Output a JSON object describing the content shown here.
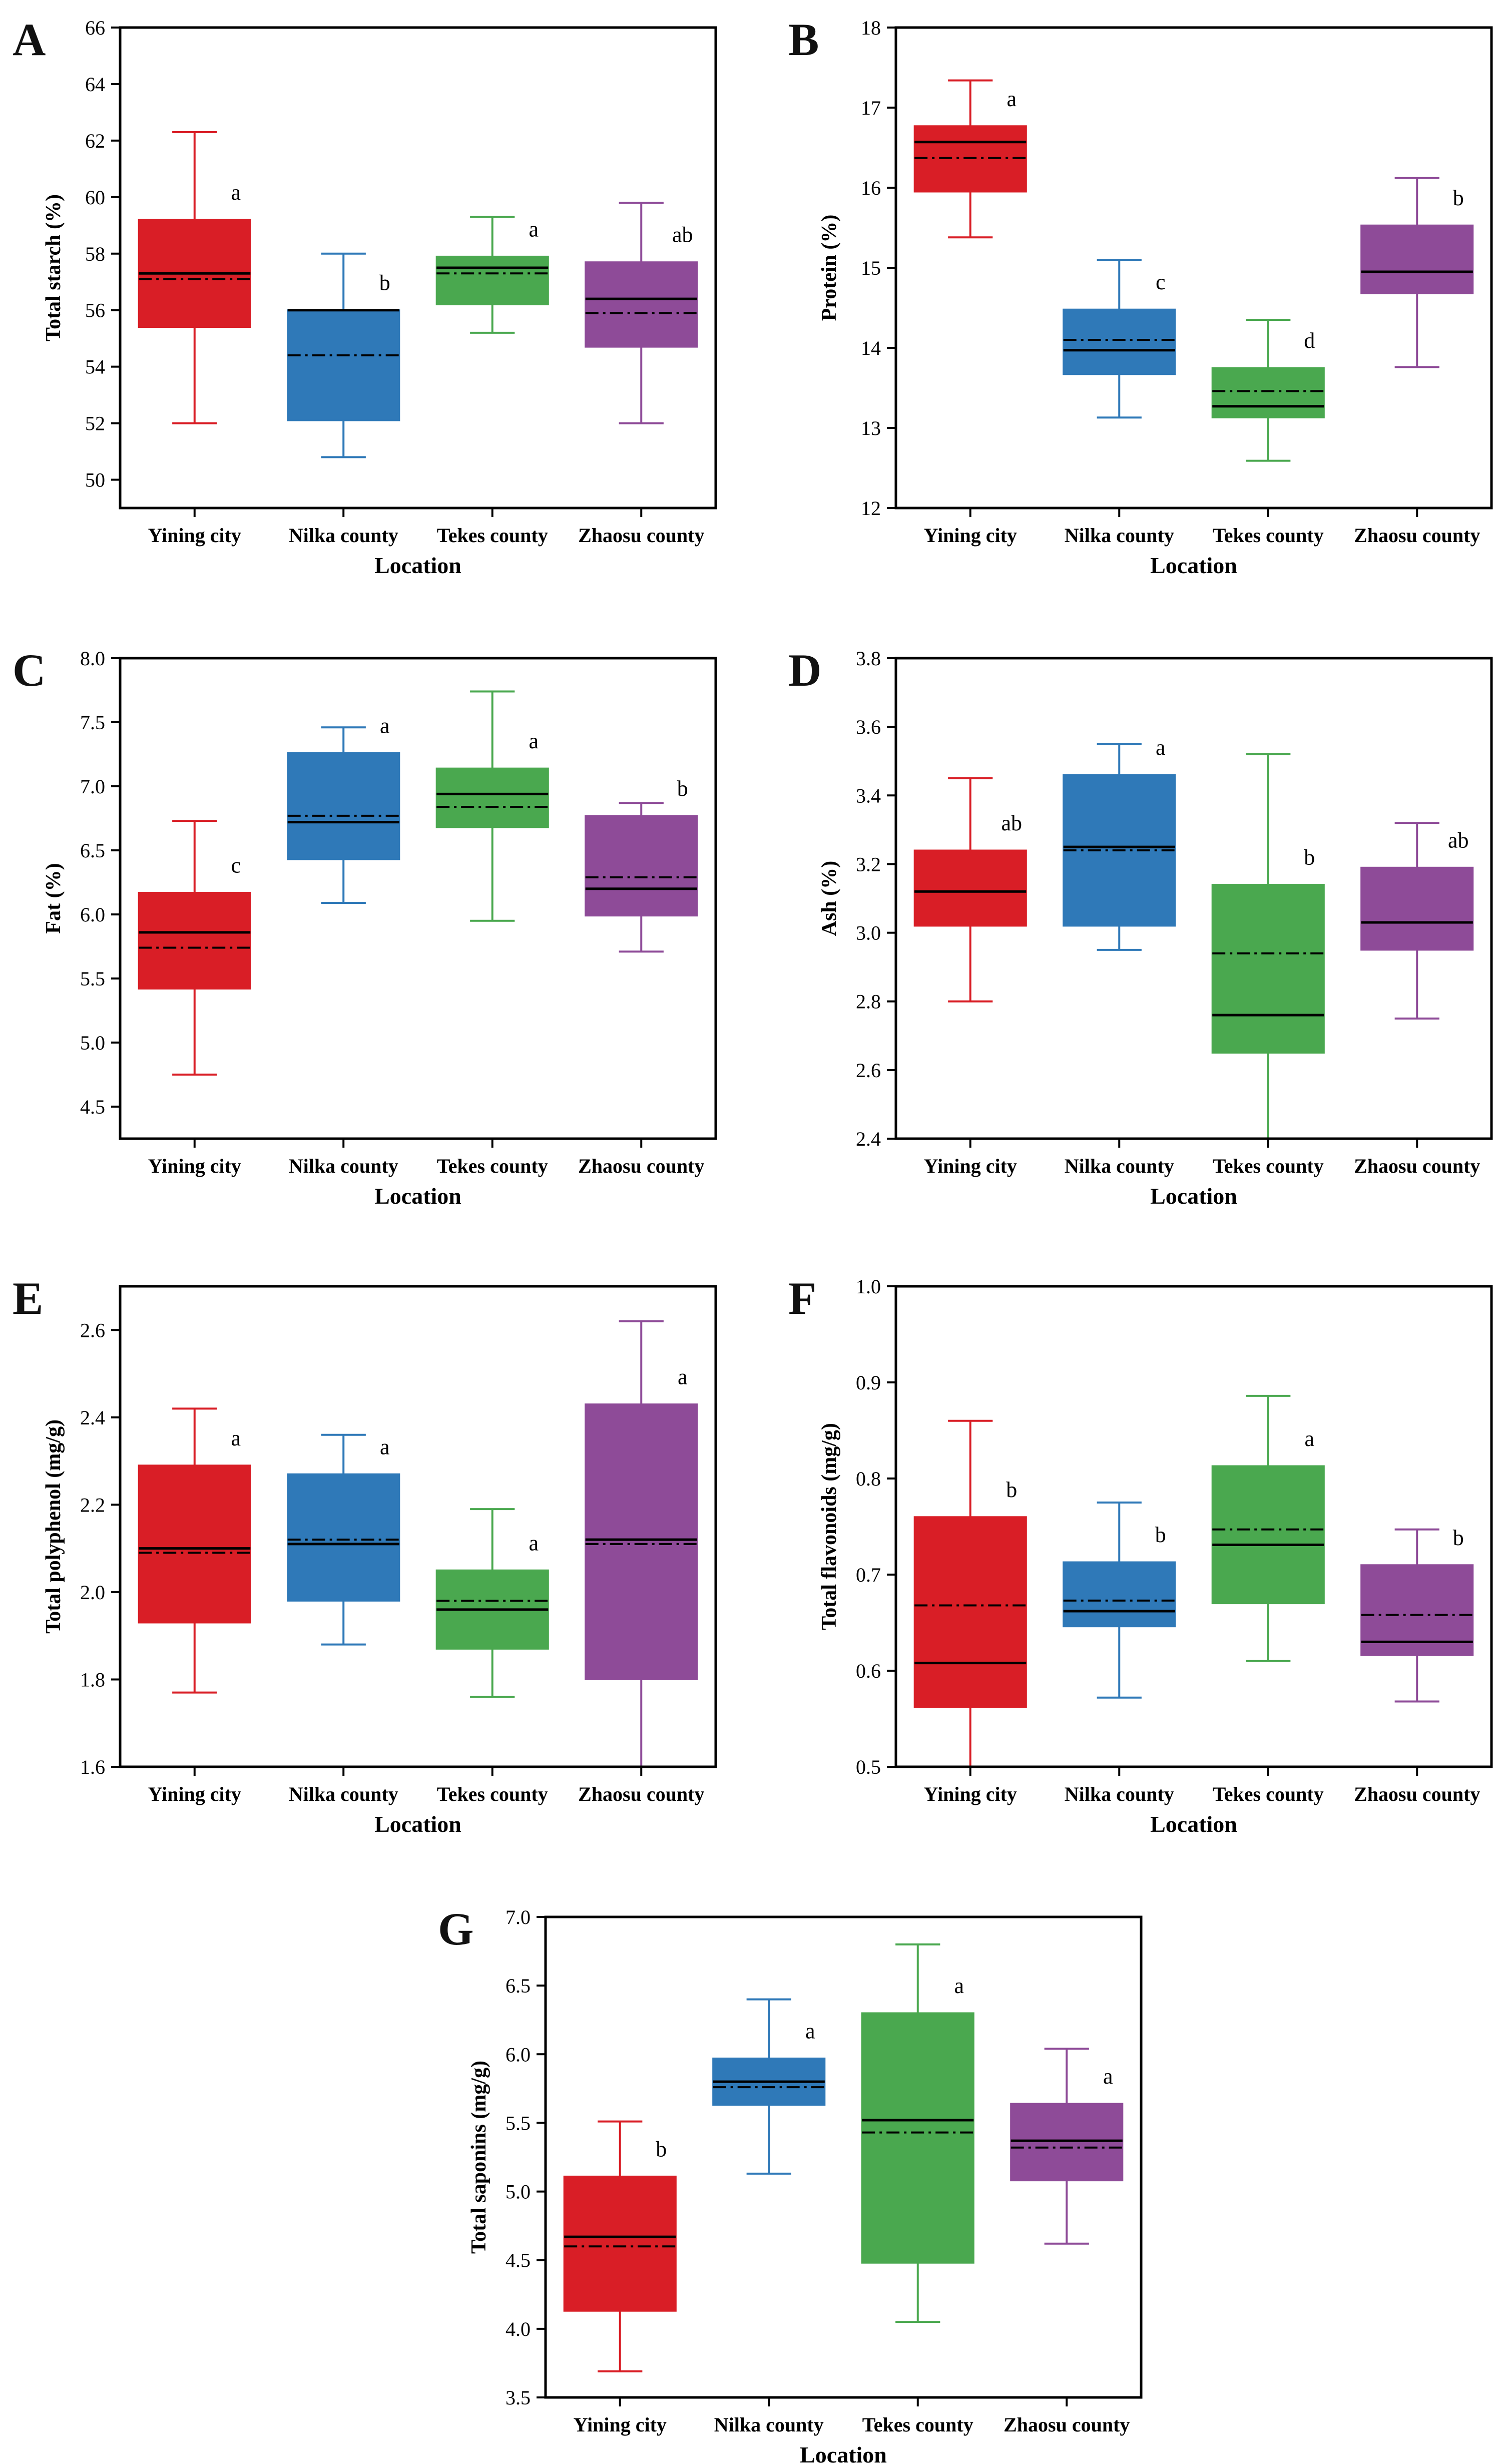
{
  "colors": {
    "Yining city": "#d91e26",
    "Nilka county": "#2f79b8",
    "Tekes county": "#4aa84f",
    "Zhaosu county": "#8e4b98"
  },
  "chart_data": [
    {
      "panel": "A",
      "type": "box",
      "xlabel": "Location",
      "ylabel": "Total starch (%)",
      "ylim": [
        49,
        66
      ],
      "yticks": [
        50,
        52,
        54,
        56,
        58,
        60,
        62,
        64,
        66
      ],
      "tickDecimals": 0,
      "categories": [
        "Yining city",
        "Nilka county",
        "Tekes county",
        "Zhaosu county"
      ],
      "boxes": [
        {
          "min": 52.0,
          "q1": 55.4,
          "median": 57.3,
          "mean": 57.1,
          "q3": 59.2,
          "max": 62.3,
          "letter": "a"
        },
        {
          "min": 50.8,
          "q1": 52.1,
          "median": 56.0,
          "mean": 54.4,
          "q3": 56.0,
          "max": 58.0,
          "letter": "b"
        },
        {
          "min": 55.2,
          "q1": 56.2,
          "median": 57.5,
          "mean": 57.3,
          "q3": 57.9,
          "max": 59.3,
          "letter": "a"
        },
        {
          "min": 52.0,
          "q1": 54.7,
          "median": 56.4,
          "mean": 55.9,
          "q3": 57.7,
          "max": 59.8,
          "letter": "ab"
        }
      ]
    },
    {
      "panel": "B",
      "type": "box",
      "xlabel": "Location",
      "ylabel": "Protein (%)",
      "ylim": [
        12,
        18
      ],
      "yticks": [
        12,
        13,
        14,
        15,
        16,
        17,
        18
      ],
      "tickDecimals": 0,
      "categories": [
        "Yining city",
        "Nilka county",
        "Tekes county",
        "Zhaosu county"
      ],
      "boxes": [
        {
          "min": 15.38,
          "q1": 15.95,
          "median": 16.57,
          "mean": 16.37,
          "q3": 16.77,
          "max": 17.34,
          "letter": "a"
        },
        {
          "min": 13.13,
          "q1": 13.67,
          "median": 13.97,
          "mean": 14.1,
          "q3": 14.48,
          "max": 15.1,
          "letter": "c"
        },
        {
          "min": 12.59,
          "q1": 13.13,
          "median": 13.27,
          "mean": 13.46,
          "q3": 13.75,
          "max": 14.35,
          "letter": "d"
        },
        {
          "min": 13.76,
          "q1": 14.68,
          "median": 14.95,
          "mean": 14.95,
          "q3": 15.53,
          "max": 16.12,
          "letter": "b"
        }
      ]
    },
    {
      "panel": "C",
      "type": "box",
      "xlabel": "Location",
      "ylabel": "Fat (%)",
      "ylim": [
        4.25,
        8.0
      ],
      "yticks": [
        4.5,
        5.0,
        5.5,
        6.0,
        6.5,
        7.0,
        7.5,
        8.0
      ],
      "tickDecimals": 1,
      "categories": [
        "Yining city",
        "Nilka county",
        "Tekes county",
        "Zhaosu county"
      ],
      "boxes": [
        {
          "min": 4.75,
          "q1": 5.42,
          "median": 5.86,
          "mean": 5.74,
          "q3": 6.17,
          "max": 6.73,
          "letter": "c"
        },
        {
          "min": 6.09,
          "q1": 6.43,
          "median": 6.72,
          "mean": 6.77,
          "q3": 7.26,
          "max": 7.46,
          "letter": "a"
        },
        {
          "min": 5.95,
          "q1": 6.68,
          "median": 6.94,
          "mean": 6.84,
          "q3": 7.14,
          "max": 7.74,
          "letter": "a"
        },
        {
          "min": 5.71,
          "q1": 5.99,
          "median": 6.2,
          "mean": 6.29,
          "q3": 6.77,
          "max": 6.87,
          "letter": "b"
        }
      ]
    },
    {
      "panel": "D",
      "type": "box",
      "xlabel": "Location",
      "ylabel": "Ash (%)",
      "ylim": [
        2.4,
        3.8
      ],
      "yticks": [
        2.4,
        2.6,
        2.8,
        3.0,
        3.2,
        3.4,
        3.6,
        3.8
      ],
      "tickDecimals": 1,
      "categories": [
        "Yining city",
        "Nilka county",
        "Tekes county",
        "Zhaosu county"
      ],
      "boxes": [
        {
          "min": 2.8,
          "q1": 3.02,
          "median": 3.12,
          "mean": 3.12,
          "q3": 3.24,
          "max": 3.45,
          "letter": "ab"
        },
        {
          "min": 2.95,
          "q1": 3.02,
          "median": 3.25,
          "mean": 3.24,
          "q3": 3.46,
          "max": 3.55,
          "letter": "a"
        },
        {
          "min": 2.4,
          "q1": 2.65,
          "median": 2.76,
          "mean": 2.94,
          "q3": 3.14,
          "max": 3.52,
          "letter": "b"
        },
        {
          "min": 2.75,
          "q1": 2.95,
          "median": 3.03,
          "mean": 3.03,
          "q3": 3.19,
          "max": 3.32,
          "letter": "ab"
        }
      ]
    },
    {
      "panel": "E",
      "type": "box",
      "xlabel": "Location",
      "ylabel": "Total polyphenol (mg/g)",
      "ylim": [
        1.6,
        2.7
      ],
      "yticks": [
        1.6,
        1.8,
        2.0,
        2.2,
        2.4,
        2.6
      ],
      "tickDecimals": 1,
      "categories": [
        "Yining city",
        "Nilka county",
        "Tekes county",
        "Zhaosu county"
      ],
      "boxes": [
        {
          "min": 1.77,
          "q1": 1.93,
          "median": 2.1,
          "mean": 2.09,
          "q3": 2.29,
          "max": 2.42,
          "letter": "a"
        },
        {
          "min": 1.88,
          "q1": 1.98,
          "median": 2.11,
          "mean": 2.12,
          "q3": 2.27,
          "max": 2.36,
          "letter": "a"
        },
        {
          "min": 1.76,
          "q1": 1.87,
          "median": 1.96,
          "mean": 1.98,
          "q3": 2.05,
          "max": 2.19,
          "letter": "a"
        },
        {
          "min": 1.6,
          "q1": 1.8,
          "median": 2.12,
          "mean": 2.11,
          "q3": 2.43,
          "max": 2.62,
          "letter": "a"
        }
      ]
    },
    {
      "panel": "F",
      "type": "box",
      "xlabel": "Location",
      "ylabel": "Total flavonoids (mg/g)",
      "ylim": [
        0.5,
        1.0
      ],
      "yticks": [
        0.5,
        0.6,
        0.7,
        0.8,
        0.9,
        1.0
      ],
      "tickDecimals": 1,
      "categories": [
        "Yining city",
        "Nilka county",
        "Tekes county",
        "Zhaosu county"
      ],
      "boxes": [
        {
          "min": 0.5,
          "q1": 0.562,
          "median": 0.608,
          "mean": 0.668,
          "q3": 0.76,
          "max": 0.86,
          "letter": "b"
        },
        {
          "min": 0.572,
          "q1": 0.646,
          "median": 0.662,
          "mean": 0.673,
          "q3": 0.713,
          "max": 0.775,
          "letter": "b"
        },
        {
          "min": 0.61,
          "q1": 0.67,
          "median": 0.731,
          "mean": 0.747,
          "q3": 0.813,
          "max": 0.886,
          "letter": "a"
        },
        {
          "min": 0.568,
          "q1": 0.616,
          "median": 0.63,
          "mean": 0.658,
          "q3": 0.71,
          "max": 0.747,
          "letter": "b"
        }
      ]
    },
    {
      "panel": "G",
      "type": "box",
      "xlabel": "Location",
      "ylabel": "Total saponins (mg/g)",
      "ylim": [
        3.5,
        7.0
      ],
      "yticks": [
        3.5,
        4.0,
        4.5,
        5.0,
        5.5,
        6.0,
        6.5,
        7.0
      ],
      "tickDecimals": 1,
      "categories": [
        "Yining city",
        "Nilka county",
        "Tekes county",
        "Zhaosu county"
      ],
      "boxes": [
        {
          "min": 3.69,
          "q1": 4.13,
          "median": 4.67,
          "mean": 4.6,
          "q3": 5.11,
          "max": 5.51,
          "letter": "b"
        },
        {
          "min": 5.13,
          "q1": 5.63,
          "median": 5.8,
          "mean": 5.76,
          "q3": 5.97,
          "max": 6.4,
          "letter": "a"
        },
        {
          "min": 4.05,
          "q1": 4.48,
          "median": 5.52,
          "mean": 5.43,
          "q3": 6.3,
          "max": 6.8,
          "letter": "a"
        },
        {
          "min": 4.62,
          "q1": 5.08,
          "median": 5.37,
          "mean": 5.32,
          "q3": 5.64,
          "max": 6.04,
          "letter": "a"
        }
      ]
    }
  ]
}
